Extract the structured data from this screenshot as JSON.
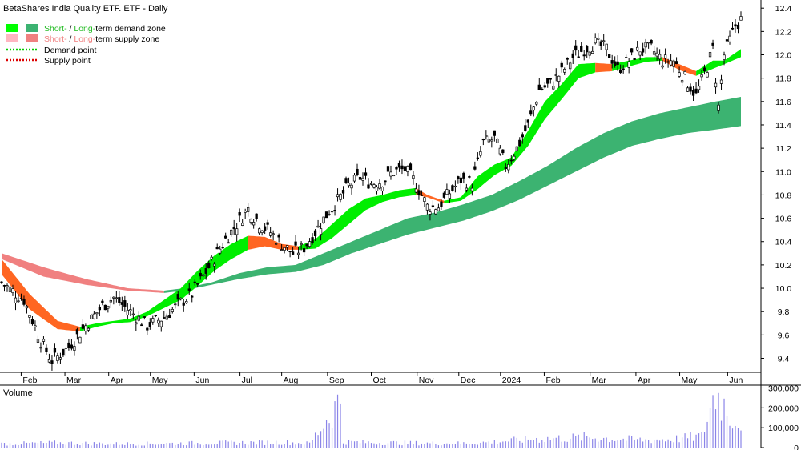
{
  "chart_data": {
    "type": "candlestick",
    "title": "BetaShares India Quality ETF. ETF - Daily",
    "legend": [
      {
        "prefix": "Short-",
        "sep": " / ",
        "prefix2": "Long-",
        "text": "term demand zone",
        "colors": [
          "#00ff00",
          "#3cb371"
        ]
      },
      {
        "prefix": "Short-",
        "sep": " / ",
        "prefix2": "Long-",
        "text": "term supply zone",
        "colors": [
          "#ffb6c1",
          "#f08080"
        ]
      },
      {
        "text": "Demand point",
        "color": "#00cc00"
      },
      {
        "text": "Supply point",
        "color": "#dd0000"
      }
    ],
    "price_axis": {
      "ticks": [
        "9.4",
        "9.6",
        "9.8",
        "10.0",
        "10.2",
        "10.4",
        "10.6",
        "10.8",
        "11.0",
        "11.2",
        "11.4",
        "11.6",
        "11.8",
        "12.0",
        "12.2",
        "12.4"
      ],
      "ylim": [
        9.28,
        12.47
      ]
    },
    "volume_axis": {
      "label": "Volume",
      "ticks": [
        "0",
        "100,000",
        "200,000",
        "300,000"
      ],
      "ylim": [
        0,
        310000
      ]
    },
    "x_labels": [
      "Feb",
      "Mar",
      "Apr",
      "May",
      "Jun",
      "Jul",
      "Aug",
      "Sep",
      "Oct",
      "Nov",
      "Dec",
      "2024",
      "Feb",
      "Mar",
      "Apr",
      "May",
      "Jun"
    ],
    "price_keypoints": [
      [
        0,
        10.05
      ],
      [
        8,
        9.9
      ],
      [
        14,
        9.55
      ],
      [
        18,
        9.38
      ],
      [
        24,
        9.5
      ],
      [
        30,
        9.68
      ],
      [
        36,
        9.85
      ],
      [
        40,
        9.92
      ],
      [
        46,
        9.8
      ],
      [
        52,
        9.68
      ],
      [
        58,
        9.75
      ],
      [
        64,
        9.88
      ],
      [
        68,
        9.95
      ],
      [
        74,
        10.18
      ],
      [
        80,
        10.42
      ],
      [
        84,
        10.55
      ],
      [
        88,
        10.68
      ],
      [
        92,
        10.56
      ],
      [
        96,
        10.48
      ],
      [
        100,
        10.38
      ],
      [
        104,
        10.3
      ],
      [
        108,
        10.35
      ],
      [
        112,
        10.48
      ],
      [
        116,
        10.63
      ],
      [
        120,
        10.75
      ],
      [
        124,
        10.88
      ],
      [
        128,
        10.95
      ],
      [
        132,
        10.9
      ],
      [
        136,
        10.92
      ],
      [
        140,
        11.0
      ],
      [
        144,
        11.02
      ],
      [
        148,
        10.9
      ],
      [
        152,
        10.7
      ],
      [
        156,
        10.7
      ],
      [
        160,
        10.82
      ],
      [
        164,
        10.93
      ],
      [
        168,
        10.9
      ],
      [
        172,
        11.25
      ],
      [
        176,
        11.28
      ],
      [
        180,
        11.05
      ],
      [
        184,
        11.2
      ],
      [
        188,
        11.4
      ],
      [
        192,
        11.7
      ],
      [
        196,
        11.75
      ],
      [
        200,
        11.85
      ],
      [
        204,
        11.98
      ],
      [
        208,
        12.05
      ],
      [
        212,
        12.1
      ],
      [
        216,
        12.05
      ],
      [
        220,
        11.88
      ],
      [
        224,
        11.95
      ],
      [
        228,
        12.05
      ],
      [
        232,
        12.05
      ],
      [
        236,
        11.95
      ],
      [
        240,
        11.95
      ],
      [
        244,
        11.8
      ],
      [
        248,
        11.65
      ],
      [
        252,
        11.9
      ],
      [
        254,
        12.05
      ],
      [
        256,
        11.55
      ],
      [
        258,
        12.0
      ],
      [
        262,
        12.25
      ],
      [
        264,
        12.3
      ]
    ],
    "short_zone_keypoints": [
      [
        0,
        10.25,
        10.12
      ],
      [
        10,
        9.95,
        9.82
      ],
      [
        20,
        9.72,
        9.65
      ],
      [
        28,
        9.67,
        9.63
      ],
      [
        34,
        9.7,
        9.67
      ],
      [
        40,
        9.72,
        9.7
      ],
      [
        46,
        9.74,
        9.71
      ],
      [
        52,
        9.8,
        9.76
      ],
      [
        58,
        9.9,
        9.83
      ],
      [
        64,
        10.0,
        9.9
      ],
      [
        70,
        10.15,
        10.02
      ],
      [
        76,
        10.28,
        10.15
      ],
      [
        82,
        10.38,
        10.25
      ],
      [
        88,
        10.45,
        10.33
      ],
      [
        94,
        10.44,
        10.36
      ],
      [
        100,
        10.38,
        10.33
      ],
      [
        106,
        10.36,
        10.33
      ],
      [
        112,
        10.42,
        10.34
      ],
      [
        118,
        10.55,
        10.43
      ],
      [
        124,
        10.68,
        10.55
      ],
      [
        130,
        10.77,
        10.67
      ],
      [
        136,
        10.8,
        10.74
      ],
      [
        142,
        10.84,
        10.78
      ],
      [
        148,
        10.86,
        10.8
      ],
      [
        152,
        10.8,
        10.78
      ],
      [
        158,
        10.75,
        10.73
      ],
      [
        164,
        10.78,
        10.75
      ],
      [
        170,
        10.96,
        10.85
      ],
      [
        176,
        11.06,
        10.97
      ],
      [
        182,
        11.12,
        11.05
      ],
      [
        188,
        11.35,
        11.22
      ],
      [
        194,
        11.6,
        11.45
      ],
      [
        200,
        11.75,
        11.62
      ],
      [
        206,
        11.92,
        11.8
      ],
      [
        212,
        11.93,
        11.85
      ],
      [
        218,
        11.92,
        11.86
      ],
      [
        224,
        11.95,
        11.9
      ],
      [
        230,
        11.98,
        11.94
      ],
      [
        236,
        11.98,
        11.95
      ],
      [
        242,
        11.92,
        11.87
      ],
      [
        248,
        11.86,
        11.82
      ],
      [
        254,
        11.95,
        11.88
      ],
      [
        258,
        11.95,
        11.92
      ],
      [
        264,
        12.05,
        11.98
      ]
    ],
    "long_zone_keypoints": [
      [
        0,
        10.3,
        10.25
      ],
      [
        15,
        10.18,
        10.1
      ],
      [
        30,
        10.08,
        10.03
      ],
      [
        45,
        10.0,
        9.98
      ],
      [
        58,
        9.98,
        9.96
      ],
      [
        65,
        10.0,
        9.98
      ],
      [
        75,
        10.05,
        10.03
      ],
      [
        85,
        10.13,
        10.08
      ],
      [
        95,
        10.18,
        10.12
      ],
      [
        105,
        10.2,
        10.14
      ],
      [
        115,
        10.3,
        10.2
      ],
      [
        125,
        10.4,
        10.3
      ],
      [
        135,
        10.5,
        10.38
      ],
      [
        145,
        10.6,
        10.46
      ],
      [
        155,
        10.65,
        10.52
      ],
      [
        165,
        10.72,
        10.58
      ],
      [
        175,
        10.8,
        10.66
      ],
      [
        185,
        10.92,
        10.76
      ],
      [
        195,
        11.05,
        10.88
      ],
      [
        205,
        11.2,
        11.0
      ],
      [
        215,
        11.33,
        11.12
      ],
      [
        225,
        11.43,
        11.22
      ],
      [
        235,
        11.5,
        11.28
      ],
      [
        245,
        11.55,
        11.33
      ],
      [
        255,
        11.6,
        11.36
      ],
      [
        264,
        11.64,
        11.39
      ]
    ],
    "volume_keypoints": [
      [
        0,
        20000
      ],
      [
        20,
        25000
      ],
      [
        40,
        20000
      ],
      [
        60,
        22000
      ],
      [
        80,
        25000
      ],
      [
        100,
        28000
      ],
      [
        110,
        22000
      ],
      [
        121,
        250000
      ],
      [
        122,
        30000
      ],
      [
        140,
        25000
      ],
      [
        160,
        22000
      ],
      [
        170,
        25000
      ],
      [
        180,
        35000
      ],
      [
        190,
        45000
      ],
      [
        200,
        50000
      ],
      [
        210,
        55000
      ],
      [
        220,
        45000
      ],
      [
        230,
        40000
      ],
      [
        240,
        45000
      ],
      [
        250,
        60000
      ],
      [
        255,
        300000
      ],
      [
        257,
        250000
      ],
      [
        259,
        200000
      ],
      [
        262,
        140000
      ],
      [
        264,
        150000
      ]
    ]
  }
}
